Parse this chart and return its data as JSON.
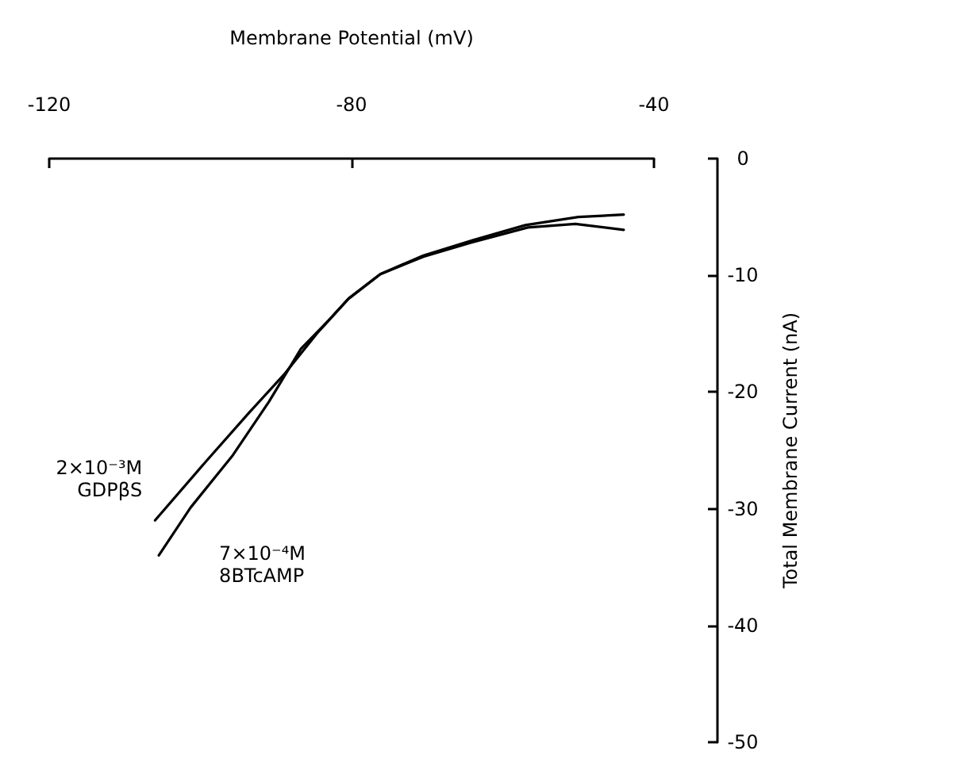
{
  "chart_data": {
    "type": "line",
    "xlabel": "Membrane Potential (mV)",
    "ylabel": "Total Membrane Current (nA)",
    "xlim": [
      -120,
      -40
    ],
    "xticks": [
      -120,
      -80,
      -40
    ],
    "ylim": [
      -50,
      0
    ],
    "yticks": [
      -50,
      -40,
      -30,
      -20,
      -10,
      0
    ],
    "grid": false,
    "legend": false,
    "marker": "none",
    "line_style": "solid",
    "series": [
      {
        "name": "2×10⁻³M\nGDPβS",
        "color": "#000000",
        "x": [
          -106,
          -99.2,
          -93.6,
          -88.8,
          -84.6,
          -80.4,
          -76.2,
          -70.5,
          -64.2,
          -56.7,
          -50.4,
          -44
        ],
        "values": [
          -31,
          -25.9,
          -21.8,
          -18.4,
          -15,
          -12,
          -9.9,
          -8.4,
          -7.2,
          -5.9,
          -5.6,
          -6.1
        ]
      },
      {
        "name": "7×10⁻⁴M\n8BTcAMP",
        "color": "#000000",
        "x": [
          -105.5,
          -101.3,
          -95.7,
          -90.9,
          -86.7,
          -83.1,
          -80.4,
          -76.2,
          -70.5,
          -64,
          -57,
          -50,
          -44
        ],
        "values": [
          -34,
          -29.9,
          -25.4,
          -20.8,
          -16.3,
          -13.9,
          -12,
          -9.9,
          -8.3,
          -7,
          -5.7,
          -5,
          -4.8
        ]
      }
    ]
  }
}
